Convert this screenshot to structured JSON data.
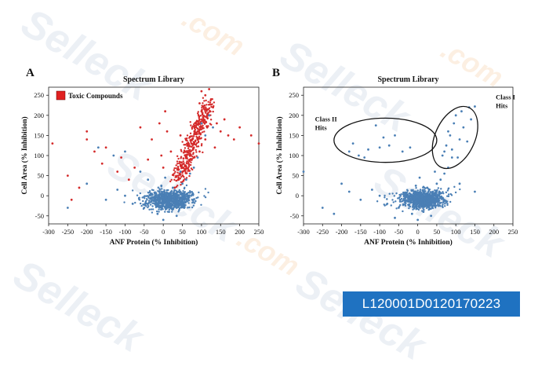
{
  "watermark": {
    "brand": "Selleck",
    "domain": ".com"
  },
  "catalog_number": "L120001D0120170223",
  "colors": {
    "blue_points": "#4a7fb5",
    "red_points": "#d42a2a",
    "legend_swatch": "#e02020",
    "badge": "#1f72c1"
  },
  "chart_data": [
    {
      "type": "scatter",
      "panel_label": "A",
      "title": "Spectrum Library",
      "xlabel": "ANF Protein (% Inhibition)",
      "ylabel": "Cell Area (% Inhibition)",
      "xlim": [
        -300,
        250
      ],
      "ylim": [
        -70,
        270
      ],
      "xticks": [
        -300,
        -250,
        -200,
        -150,
        -100,
        -50,
        0,
        50,
        100,
        150,
        200,
        250
      ],
      "yticks": [
        -50,
        0,
        50,
        100,
        150,
        200,
        250
      ],
      "grid": false,
      "legend": {
        "position": "top-left",
        "entries": [
          {
            "label": "Toxic Compounds",
            "color": "#e02020"
          }
        ]
      },
      "series": [
        {
          "name": "Toxic Compounds",
          "color": "#d42a2a",
          "points": [
            [
              100,
              210
            ],
            [
              95,
              230
            ],
            [
              110,
              250
            ],
            [
              120,
              200
            ],
            [
              85,
              180
            ],
            [
              130,
              220
            ],
            [
              105,
              190
            ],
            [
              90,
              160
            ],
            [
              115,
              170
            ],
            [
              75,
              140
            ],
            [
              125,
              240
            ],
            [
              100,
              260
            ],
            [
              80,
              120
            ],
            [
              60,
              100
            ],
            [
              140,
              180
            ],
            [
              150,
              160
            ],
            [
              170,
              150
            ],
            [
              200,
              170
            ],
            [
              230,
              150
            ],
            [
              110,
              140
            ],
            [
              70,
              90
            ],
            [
              50,
              60
            ],
            [
              40,
              40
            ],
            [
              30,
              20
            ],
            [
              -10,
              180
            ],
            [
              -30,
              140
            ],
            [
              -60,
              170
            ],
            [
              -75,
              70
            ],
            [
              -120,
              60
            ],
            [
              -150,
              120
            ],
            [
              -200,
              160
            ],
            [
              -250,
              50
            ],
            [
              -290,
              130
            ],
            [
              -220,
              20
            ],
            [
              -180,
              110
            ],
            [
              -240,
              -10
            ],
            [
              10,
              160
            ],
            [
              -5,
              100
            ],
            [
              0,
              70
            ],
            [
              20,
              110
            ],
            [
              65,
              130
            ],
            [
              95,
              110
            ],
            [
              135,
              120
            ],
            [
              160,
              190
            ],
            [
              185,
              140
            ],
            [
              250,
              130
            ],
            [
              -40,
              90
            ],
            [
              -90,
              40
            ],
            [
              -110,
              95
            ],
            [
              -160,
              80
            ],
            [
              -200,
              140
            ],
            [
              5,
              210
            ],
            [
              45,
              150
            ],
            [
              120,
              265
            ]
          ]
        },
        {
          "name": "",
          "color": "#4a7fb5",
          "points": [
            [
              0,
              0
            ],
            [
              10,
              -10
            ],
            [
              20,
              5
            ],
            [
              -10,
              10
            ],
            [
              30,
              -20
            ],
            [
              -20,
              -15
            ],
            [
              40,
              10
            ],
            [
              50,
              30
            ],
            [
              25,
              20
            ],
            [
              -30,
              5
            ],
            [
              -50,
              -30
            ],
            [
              -80,
              -20
            ],
            [
              -100,
              0
            ],
            [
              -120,
              15
            ],
            [
              -150,
              -10
            ],
            [
              -200,
              30
            ],
            [
              -250,
              -30
            ],
            [
              60,
              40
            ],
            [
              70,
              55
            ],
            [
              80,
              70
            ],
            [
              90,
              95
            ],
            [
              110,
              150
            ],
            [
              100,
              180
            ],
            [
              120,
              200
            ],
            [
              130,
              170
            ],
            [
              -40,
              40
            ],
            [
              -60,
              60
            ],
            [
              -100,
              110
            ],
            [
              -130,
              100
            ],
            [
              -170,
              120
            ],
            [
              15,
              -40
            ],
            [
              0,
              -60
            ],
            [
              35,
              -50
            ],
            [
              -15,
              -45
            ],
            [
              55,
              -25
            ],
            [
              5,
              45
            ],
            [
              -5,
              25
            ],
            [
              45,
              60
            ],
            [
              65,
              -5
            ]
          ]
        }
      ]
    },
    {
      "type": "scatter",
      "panel_label": "B",
      "title": "Spectrum Library",
      "xlabel": "ANF Protein (% Inhibition)",
      "ylabel": "Cell Area (% Inhibition)",
      "xlim": [
        -300,
        250
      ],
      "ylim": [
        -70,
        270
      ],
      "xticks": [
        -300,
        -250,
        -200,
        -150,
        -100,
        -50,
        0,
        50,
        100,
        150,
        200,
        250
      ],
      "yticks": [
        -50,
        0,
        50,
        100,
        150,
        200,
        250
      ],
      "grid": false,
      "annotations": [
        {
          "lines": [
            "Class II",
            "Hits"
          ],
          "x": -270,
          "y": 185,
          "ellipse": {
            "cx": -85,
            "cy": 138,
            "rx": 135,
            "ry": 55
          }
        },
        {
          "lines": [
            "Class I",
            "Hits"
          ],
          "x": 205,
          "y": 240,
          "ellipse": {
            "cx": 98,
            "cy": 145,
            "rx": 52,
            "ry": 82,
            "rotation": 25
          }
        }
      ],
      "series": [
        {
          "name": "",
          "color": "#4a7fb5",
          "points": [
            [
              0,
              0
            ],
            [
              10,
              -10
            ],
            [
              20,
              5
            ],
            [
              -10,
              10
            ],
            [
              30,
              -20
            ],
            [
              -20,
              -15
            ],
            [
              40,
              10
            ],
            [
              50,
              30
            ],
            [
              25,
              20
            ],
            [
              -30,
              5
            ],
            [
              -50,
              -30
            ],
            [
              -80,
              -20
            ],
            [
              -100,
              0
            ],
            [
              -120,
              15
            ],
            [
              -150,
              -10
            ],
            [
              -200,
              30
            ],
            [
              -250,
              -30
            ],
            [
              60,
              40
            ],
            [
              70,
              55
            ],
            [
              80,
              70
            ],
            [
              90,
              95
            ],
            [
              15,
              -40
            ],
            [
              0,
              -60
            ],
            [
              35,
              -50
            ],
            [
              -15,
              -45
            ],
            [
              55,
              -25
            ],
            [
              5,
              45
            ],
            [
              -5,
              25
            ],
            [
              45,
              60
            ],
            [
              65,
              -5
            ],
            [
              -180,
              10
            ],
            [
              -220,
              -45
            ],
            [
              -60,
              -55
            ],
            [
              110,
              30
            ],
            [
              150,
              10
            ],
            [
              -300,
              60
            ]
          ]
        },
        {
          "name": "Class I Hits",
          "color": "#4a7fb5",
          "points": [
            [
              65,
              100
            ],
            [
              75,
              125
            ],
            [
              85,
              150
            ],
            [
              95,
              180
            ],
            [
              100,
              200
            ],
            [
              115,
              210
            ],
            [
              135,
              220
            ],
            [
              150,
              222
            ],
            [
              120,
              170
            ],
            [
              110,
              140
            ],
            [
              90,
              115
            ],
            [
              105,
              95
            ],
            [
              130,
              135
            ],
            [
              80,
              160
            ],
            [
              140,
              190
            ],
            [
              70,
              110
            ]
          ]
        },
        {
          "name": "Class II Hits",
          "color": "#4a7fb5",
          "points": [
            [
              -180,
              110
            ],
            [
              -155,
              100
            ],
            [
              -130,
              115
            ],
            [
              -100,
              120
            ],
            [
              -90,
              145
            ],
            [
              -60,
              150
            ],
            [
              -40,
              110
            ],
            [
              -20,
              120
            ],
            [
              -170,
              130
            ],
            [
              -110,
              175
            ],
            [
              -75,
              125
            ],
            [
              -140,
              95
            ]
          ]
        }
      ]
    }
  ]
}
